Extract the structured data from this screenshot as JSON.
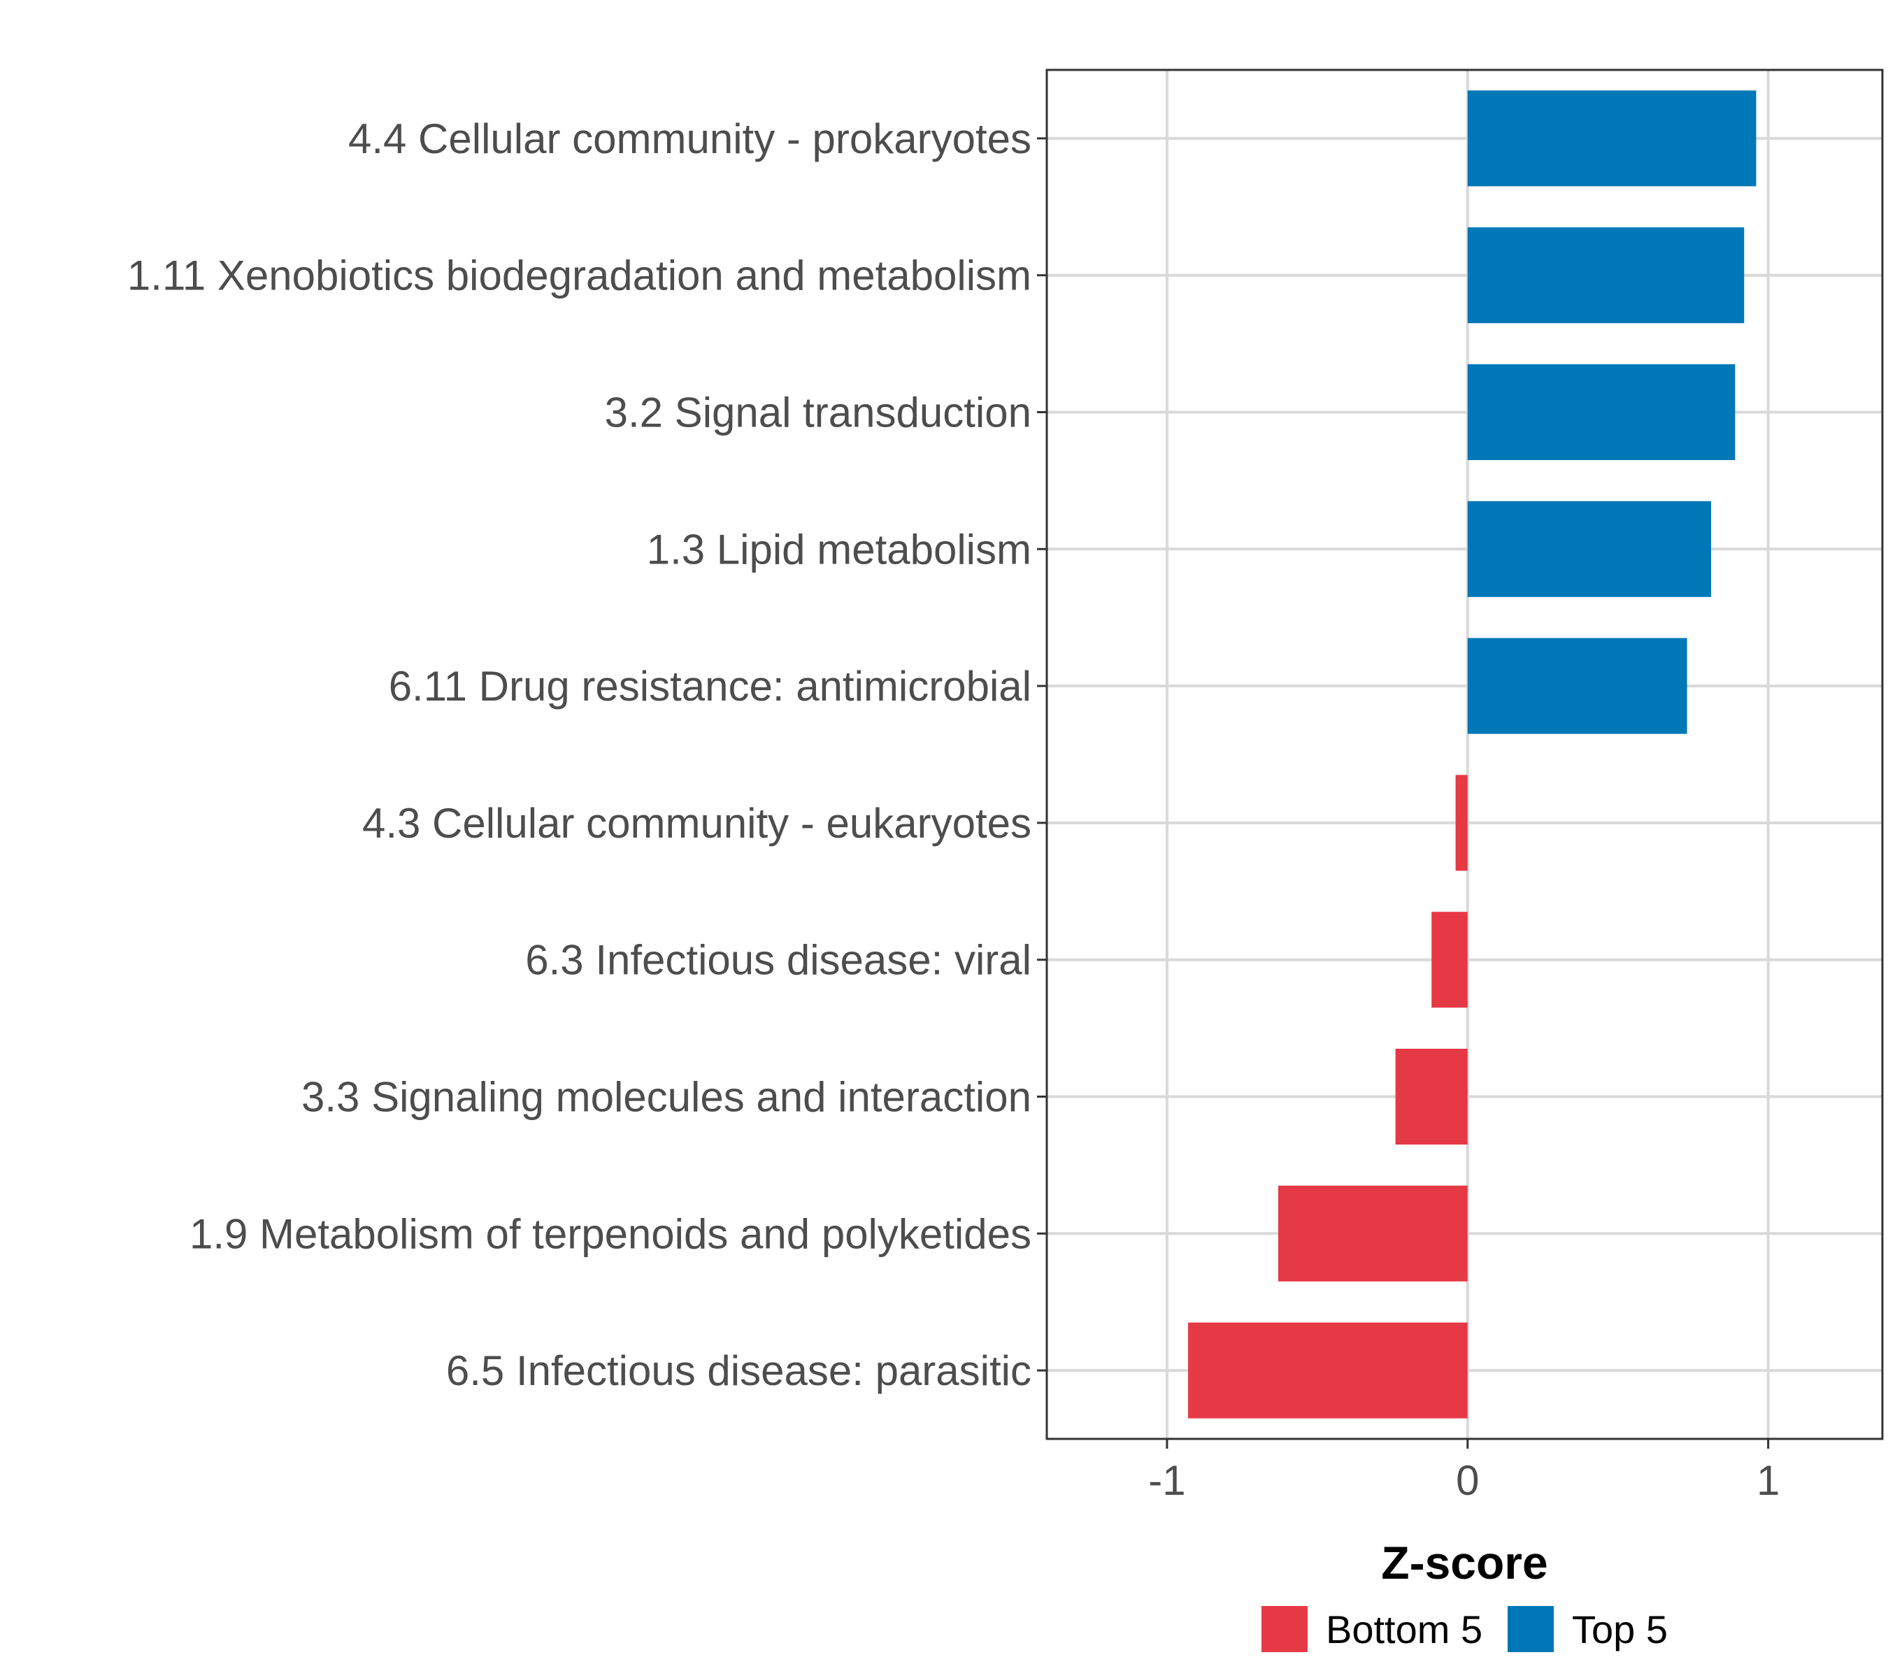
{
  "chart_data": {
    "type": "bar",
    "orientation": "horizontal",
    "title": "",
    "xlabel": "Z-score",
    "ylabel": "",
    "xlim": [
      -1.4,
      1.38
    ],
    "xticks": [
      -1,
      0,
      1
    ],
    "xtick_labels": [
      "-1",
      "0",
      "1"
    ],
    "grid": true,
    "legend_position": "bottom",
    "legend": [
      {
        "label": "Bottom 5",
        "color": "#e63946"
      },
      {
        "label": "Top 5",
        "color": "#0077b6"
      }
    ],
    "categories": [
      "4.4 Cellular community - prokaryotes",
      "1.11 Xenobiotics biodegradation and metabolism",
      "3.2 Signal transduction",
      "1.3 Lipid metabolism",
      "6.11 Drug resistance: antimicrobial",
      "4.3 Cellular community - eukaryotes",
      "6.3 Infectious disease: viral",
      "3.3 Signaling molecules and interaction",
      "1.9 Metabolism of terpenoids and polyketides",
      "6.5 Infectious disease: parasitic"
    ],
    "values": [
      0.96,
      0.92,
      0.89,
      0.81,
      0.73,
      -0.04,
      -0.12,
      -0.24,
      -0.63,
      -0.93
    ],
    "groups": [
      "Top 5",
      "Top 5",
      "Top 5",
      "Top 5",
      "Top 5",
      "Bottom 5",
      "Bottom 5",
      "Bottom 5",
      "Bottom 5",
      "Bottom 5"
    ]
  }
}
